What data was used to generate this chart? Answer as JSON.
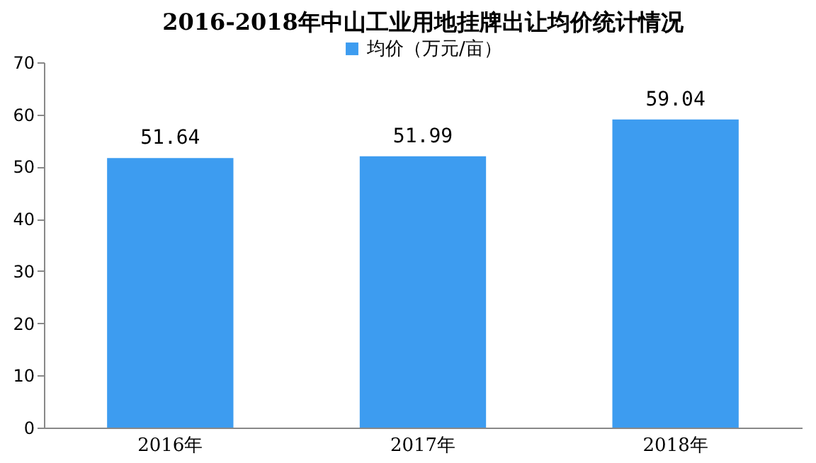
{
  "chart_data": {
    "type": "bar",
    "title": "2016-2018年中山工业用地挂牌出让均价统计情况",
    "categories": [
      "2016年",
      "2017年",
      "2018年"
    ],
    "series": [
      {
        "name": "均价（万元/亩）",
        "color": "#3d9cf0",
        "values": [
          51.64,
          51.99,
          59.04
        ]
      }
    ],
    "ylim": [
      0,
      70
    ],
    "yticks": [
      0,
      10,
      20,
      30,
      40,
      50,
      60,
      70
    ],
    "grid": false,
    "legend": "top",
    "data_labels": true
  }
}
